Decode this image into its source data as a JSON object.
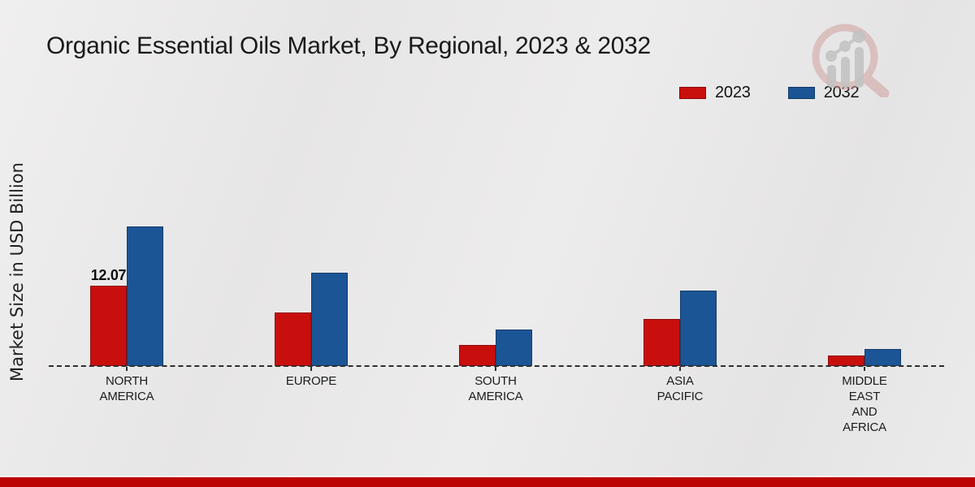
{
  "header": {
    "title": "Organic Essential Oils Market, By Regional, 2023 & 2032"
  },
  "legend": {
    "items": [
      {
        "label": "2023",
        "color": "#c90f0e"
      },
      {
        "label": "2032",
        "color": "#1b5595"
      }
    ]
  },
  "chart_data": {
    "type": "bar",
    "title": "Organic Essential Oils Market, By Regional, 2023 & 2032",
    "ylabel": "Market Size in USD Billion",
    "xlabel": "",
    "categories": [
      "NORTH\nAMERICA",
      "EUROPE",
      "SOUTH\nAMERICA",
      "ASIA\nPACIFIC",
      "MIDDLE\nEAST\nAND\nAFRICA"
    ],
    "series": [
      {
        "name": "2023",
        "color": "#c90f0e",
        "values": [
          12.07,
          8.05,
          3.2,
          7.1,
          1.6
        ]
      },
      {
        "name": "2032",
        "color": "#1b5595",
        "values": [
          21.0,
          14.0,
          5.5,
          11.3,
          2.6
        ]
      }
    ],
    "annotations": [
      {
        "series": "2023",
        "category_index": 0,
        "text": "12.07"
      }
    ],
    "axis": {
      "baseline_style": "dashed",
      "y_axis_ticks": "hidden"
    },
    "grid": "off",
    "legend_position": "top-right"
  },
  "footer": {
    "accent_color": "#bd0404"
  },
  "watermark": {
    "icon": "magnifier-growth-chart-logo"
  }
}
